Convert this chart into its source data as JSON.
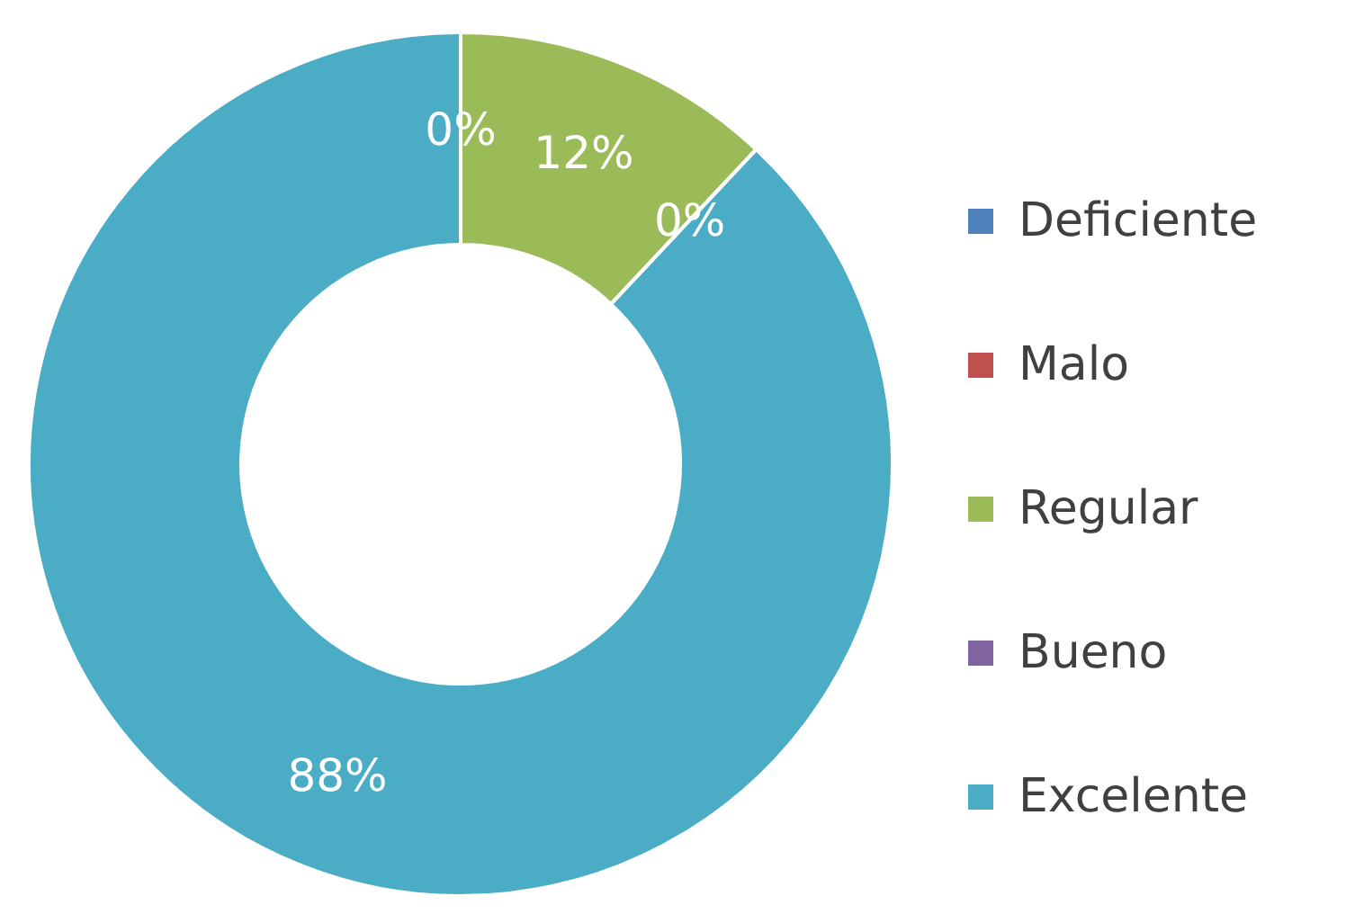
{
  "chart_data": {
    "type": "donut",
    "categories": [
      "Deficiente",
      "Malo",
      "Regular",
      "Bueno",
      "Excelente"
    ],
    "values": [
      0,
      0,
      12,
      0,
      88
    ],
    "colors": [
      "#4f81bd",
      "#c0504d",
      "#9bbb59",
      "#8064a2",
      "#4bacc6"
    ],
    "value_labels": [
      null,
      "0%",
      "12%",
      "0%",
      "88%"
    ],
    "legend": "right"
  }
}
